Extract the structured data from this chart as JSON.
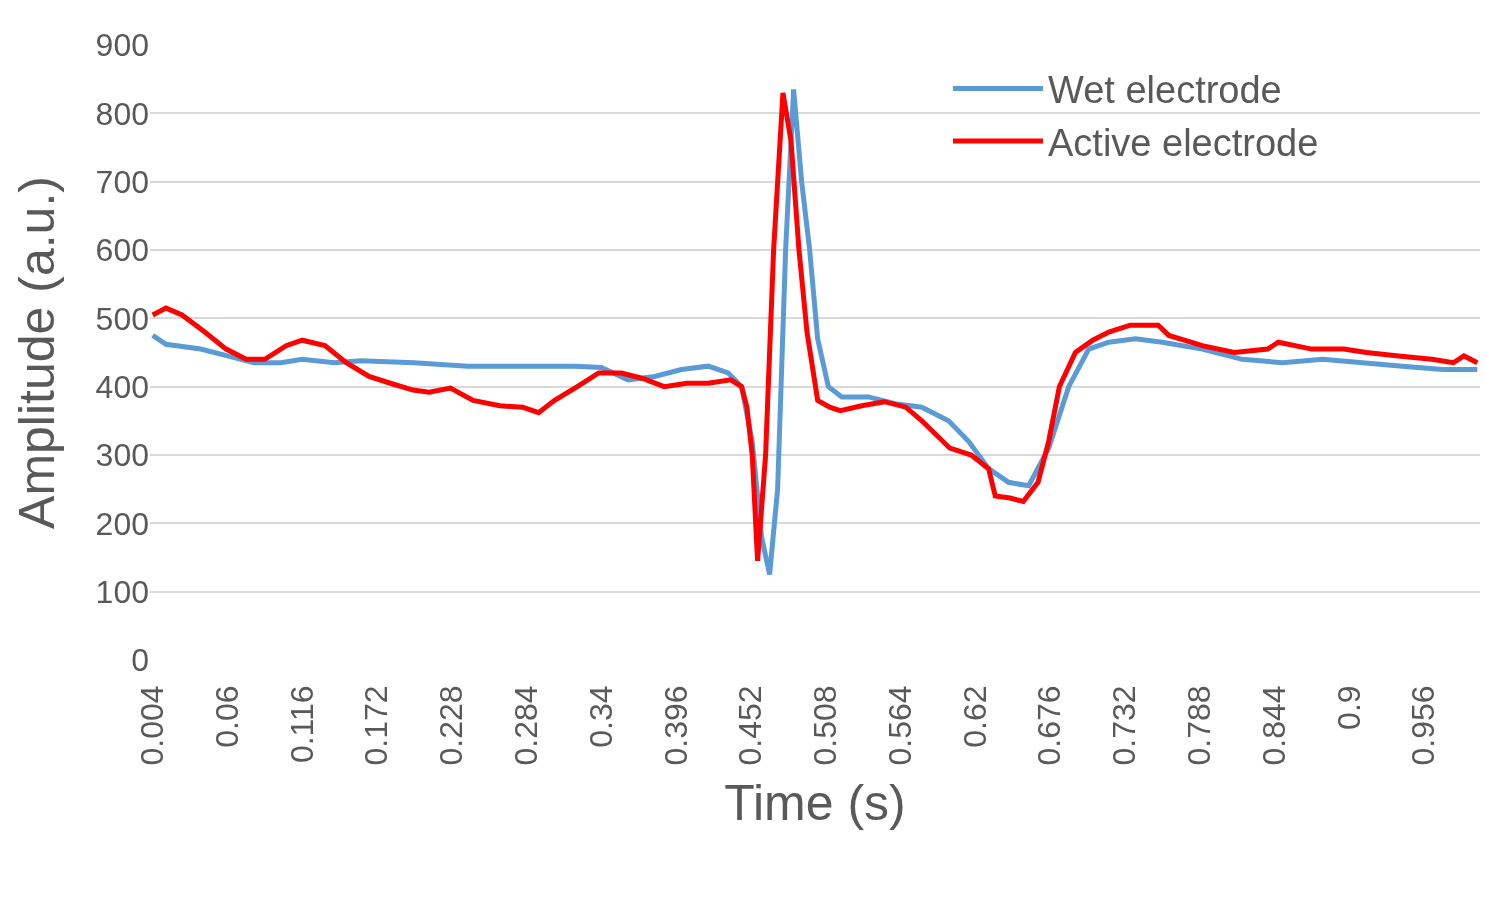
{
  "chart_data": {
    "type": "line",
    "xlabel": "Time (s)",
    "ylabel": "Amplitude (a.u.)",
    "xlim": [
      0.002,
      0.998
    ],
    "ylim": [
      0,
      900
    ],
    "xticks": [
      0.004,
      0.06,
      0.116,
      0.172,
      0.228,
      0.284,
      0.34,
      0.396,
      0.452,
      0.508,
      0.564,
      0.62,
      0.676,
      0.732,
      0.788,
      0.844,
      0.9,
      0.956
    ],
    "yticks": [
      0,
      100,
      200,
      300,
      400,
      500,
      600,
      700,
      800,
      900
    ],
    "grid": "y",
    "legend": "top right",
    "marker": "none",
    "line_style": "solid",
    "series": [
      {
        "name": "Wet electrode",
        "color": "#5b9bd5",
        "x": [
          0.004,
          0.014,
          0.04,
          0.06,
          0.08,
          0.1,
          0.116,
          0.14,
          0.16,
          0.2,
          0.24,
          0.28,
          0.32,
          0.34,
          0.36,
          0.38,
          0.4,
          0.42,
          0.435,
          0.445,
          0.453,
          0.46,
          0.466,
          0.472,
          0.478,
          0.484,
          0.49,
          0.496,
          0.502,
          0.51,
          0.52,
          0.54,
          0.56,
          0.58,
          0.6,
          0.615,
          0.63,
          0.645,
          0.66,
          0.675,
          0.69,
          0.705,
          0.72,
          0.74,
          0.76,
          0.79,
          0.82,
          0.85,
          0.88,
          0.91,
          0.94,
          0.97,
          0.996
        ],
        "values": [
          475,
          462,
          455,
          445,
          435,
          435,
          440,
          435,
          438,
          435,
          430,
          430,
          430,
          428,
          410,
          415,
          425,
          430,
          420,
          400,
          320,
          180,
          125,
          250,
          600,
          835,
          700,
          600,
          470,
          400,
          385,
          385,
          375,
          370,
          350,
          320,
          280,
          260,
          255,
          310,
          400,
          455,
          465,
          470,
          465,
          455,
          440,
          435,
          440,
          435,
          430,
          425,
          425
        ]
      },
      {
        "name": "Active electrode",
        "color": "#ff0000",
        "x": [
          0.004,
          0.014,
          0.026,
          0.043,
          0.059,
          0.074,
          0.088,
          0.104,
          0.116,
          0.133,
          0.149,
          0.166,
          0.182,
          0.199,
          0.211,
          0.227,
          0.244,
          0.264,
          0.281,
          0.293,
          0.305,
          0.322,
          0.338,
          0.355,
          0.371,
          0.387,
          0.404,
          0.42,
          0.437,
          0.445,
          0.449,
          0.453,
          0.457,
          0.463,
          0.469,
          0.476,
          0.482,
          0.488,
          0.494,
          0.502,
          0.511,
          0.519,
          0.535,
          0.552,
          0.568,
          0.58,
          0.601,
          0.617,
          0.63,
          0.635,
          0.646,
          0.656,
          0.667,
          0.675,
          0.683,
          0.695,
          0.708,
          0.72,
          0.736,
          0.757,
          0.765,
          0.79,
          0.814,
          0.839,
          0.847,
          0.872,
          0.896,
          0.913,
          0.937,
          0.962,
          0.978,
          0.986,
          0.996
        ],
        "values": [
          505,
          515,
          505,
          480,
          455,
          440,
          440,
          460,
          468,
          460,
          435,
          415,
          405,
          395,
          392,
          398,
          380,
          372,
          370,
          362,
          380,
          400,
          420,
          420,
          412,
          400,
          405,
          405,
          410,
          400,
          370,
          300,
          145,
          300,
          600,
          830,
          760,
          600,
          480,
          380,
          370,
          365,
          372,
          378,
          370,
          350,
          310,
          300,
          280,
          240,
          237,
          232,
          260,
          320,
          400,
          450,
          468,
          480,
          490,
          490,
          475,
          460,
          450,
          455,
          465,
          455,
          455,
          450,
          445,
          440,
          435,
          445,
          435
        ]
      }
    ]
  }
}
